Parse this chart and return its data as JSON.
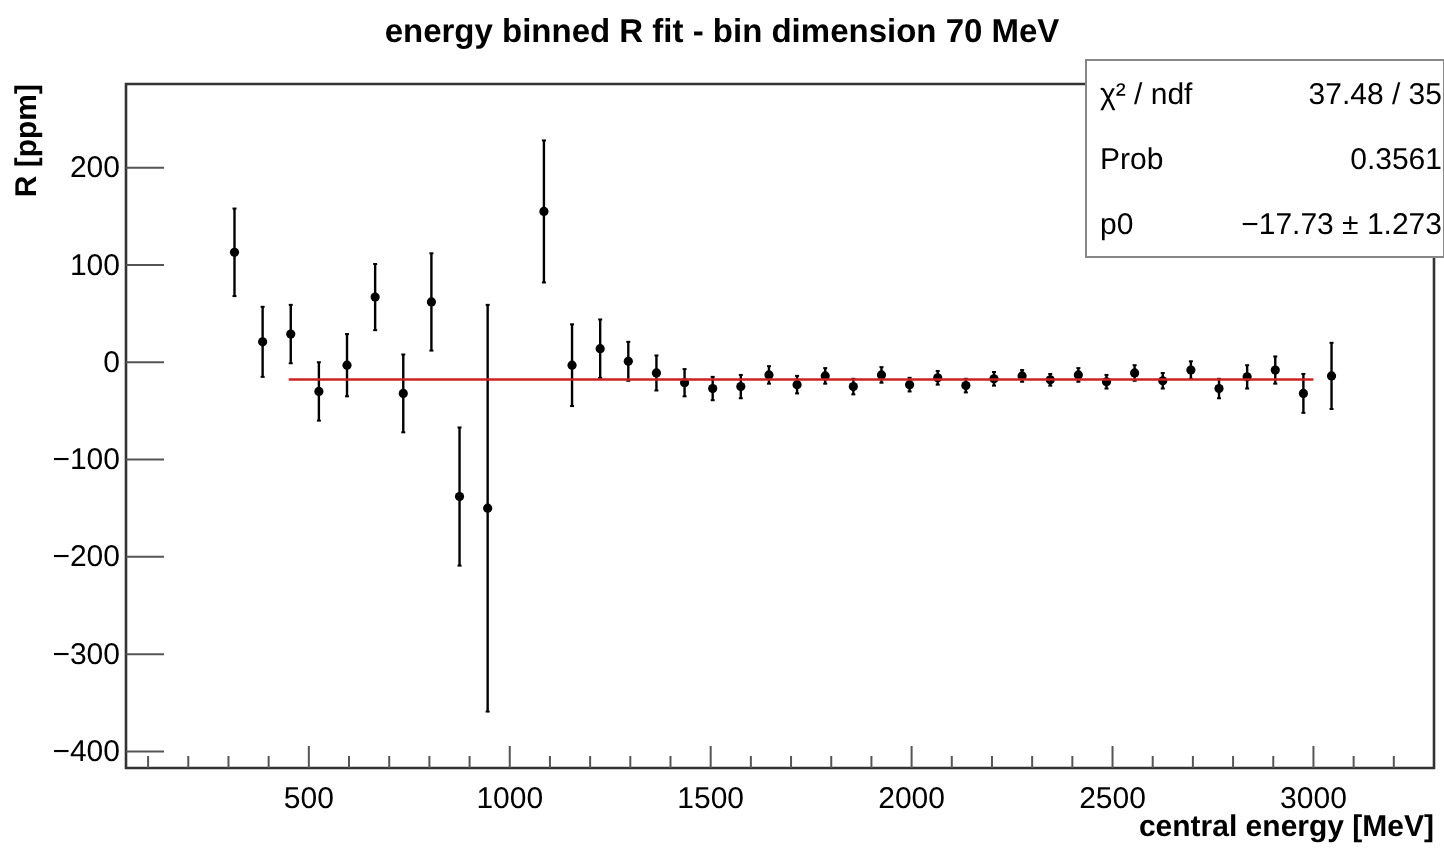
{
  "chart_data": {
    "type": "scatter",
    "title": "energy binned R fit - bin dimension 70 MeV",
    "xlabel": "central energy [MeV]",
    "ylabel": "R [ppm]",
    "xlim": [
      45,
      3300
    ],
    "ylim": [
      -417,
      286
    ],
    "xticks": [
      {
        "value": 100,
        "label": null
      },
      {
        "value": 200,
        "label": null
      },
      {
        "value": 300,
        "label": null
      },
      {
        "value": 400,
        "label": null
      },
      500,
      {
        "value": 600,
        "label": null
      },
      {
        "value": 700,
        "label": null
      },
      {
        "value": 800,
        "label": null
      },
      {
        "value": 900,
        "label": null
      },
      1000,
      {
        "value": 1100,
        "label": null
      },
      {
        "value": 1200,
        "label": null
      },
      {
        "value": 1300,
        "label": null
      },
      {
        "value": 1400,
        "label": null
      },
      1500,
      {
        "value": 1600,
        "label": null
      },
      {
        "value": 1700,
        "label": null
      },
      {
        "value": 1800,
        "label": null
      },
      {
        "value": 1900,
        "label": null
      },
      2000,
      {
        "value": 2100,
        "label": null
      },
      {
        "value": 2200,
        "label": null
      },
      {
        "value": 2300,
        "label": null
      },
      {
        "value": 2400,
        "label": null
      },
      2500,
      {
        "value": 2600,
        "label": null
      },
      {
        "value": 2700,
        "label": null
      },
      {
        "value": 2800,
        "label": null
      },
      {
        "value": 2900,
        "label": null
      },
      3000,
      {
        "value": 3100,
        "label": null
      },
      {
        "value": 3200,
        "label": null
      }
    ],
    "yticks": [
      -400,
      -300,
      -200,
      -100,
      0,
      100,
      200
    ],
    "grid": false,
    "marker": "circle",
    "annotations": [
      "χ² / ndf",
      "37.48 / 35",
      "Prob",
      "0.3561",
      "p0",
      "−17.73 ± 1.273"
    ],
    "series": [
      {
        "type": "scatter",
        "color": "#000000",
        "x": [
          315,
          385,
          455,
          525,
          595,
          665,
          735,
          805,
          875,
          945,
          1015,
          1085,
          1155,
          1225,
          1295,
          1365,
          1435,
          1505,
          1575,
          1645,
          1715,
          1785,
          1855,
          1925,
          1995,
          2065,
          2135,
          2205,
          2275,
          2345,
          2415,
          2485,
          2555,
          2625,
          2695,
          2765,
          2835,
          2905,
          2975,
          3045
        ],
        "values": [
          113,
          21,
          29,
          -30,
          -3,
          67,
          -32,
          62,
          -138,
          -150,
          null,
          155,
          -3,
          14,
          1,
          -11,
          -21,
          -27,
          -25,
          -13,
          -23,
          -14,
          -25,
          -13,
          -23,
          -16,
          -24,
          -17,
          -14,
          -18,
          -13,
          -20,
          -11,
          -19,
          -8,
          -27,
          -15,
          -8,
          -32,
          -14
        ],
        "errors": [
          45,
          36,
          30,
          30,
          32,
          34,
          40,
          50,
          71,
          209,
          null,
          73,
          42,
          30,
          20,
          18,
          14,
          12,
          12,
          9,
          9,
          8,
          8,
          8,
          7,
          7,
          7,
          7,
          6,
          6,
          7,
          7,
          8,
          8,
          9,
          10,
          12,
          14,
          20,
          34
        ]
      },
      {
        "type": "line",
        "color": "#cc2222",
        "line_style": "solid",
        "marker": "none",
        "x": [
          450,
          3000
        ],
        "values": [
          -17.73,
          -17.73
        ]
      }
    ]
  }
}
